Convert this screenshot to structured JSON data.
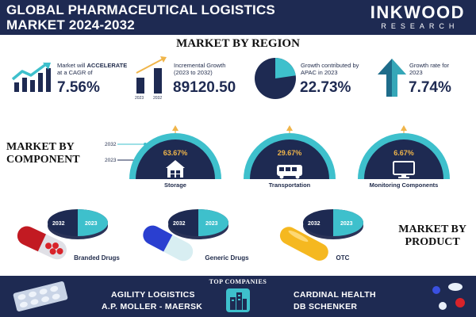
{
  "header": {
    "title_line1": "GLOBAL PHARMACEUTICAL LOGISTICS",
    "title_line2": "MARKET 2024-2032",
    "logo_main": "INKWOOD",
    "logo_sub": "RESEARCH"
  },
  "region": {
    "title": "MARKET BY REGION",
    "stats": [
      {
        "label_line1": "Market will ",
        "label_emph": "ACCELERATE",
        "label_line2": "at a CAGR of",
        "value": "7.56%",
        "icon": "growth-chart-icon"
      },
      {
        "label_line1": "Incremental Growth",
        "label_line2": "(2023 to 2032)",
        "value": "89120.50",
        "icon": "bar-chart-icon",
        "bar_years": [
          "2023",
          "2032"
        ]
      },
      {
        "label_line1": "Growth contributed by",
        "label_line2": "APAC in 2023",
        "value": "22.73%",
        "icon": "pie-chart-icon",
        "share": 0.2273
      },
      {
        "label_line1": "Growth rate for",
        "label_line2": "2023",
        "value": "7.74%",
        "icon": "up-arrow-icon"
      }
    ]
  },
  "component": {
    "title_line1": "MARKET BY",
    "title_line2": "COMPONENT",
    "legend_years": [
      "2032",
      "2023"
    ],
    "items": [
      {
        "label": "Storage",
        "value": "63.67%",
        "icon": "warehouse-icon"
      },
      {
        "label": "Transportation",
        "value": "29.67%",
        "icon": "bus-icon"
      },
      {
        "label": "Monitoring Components",
        "value": "6.67%",
        "icon": "monitor-icon"
      }
    ]
  },
  "product": {
    "title_line1": "MARKET BY",
    "title_line2": "PRODUCT",
    "disc_years": [
      "2032",
      "2023"
    ],
    "items": [
      {
        "label": "Branded Drugs",
        "icon": "red-capsule-icon"
      },
      {
        "label": "Generic Drugs",
        "icon": "blue-capsule-icon"
      },
      {
        "label": "OTC",
        "icon": "yellow-capsule-icon"
      }
    ]
  },
  "footer": {
    "title": "TOP COMPANIES",
    "companies": [
      "AGILITY LOGISTICS",
      "A.P. MOLLER - MAERSK",
      "CARDINAL HEALTH",
      "DB SCHENKER"
    ]
  },
  "colors": {
    "navy": "#1e2a52",
    "teal": "#3ec0cc",
    "gold": "#f0b54a",
    "red": "#d8232a",
    "blue": "#2a3fd0"
  }
}
